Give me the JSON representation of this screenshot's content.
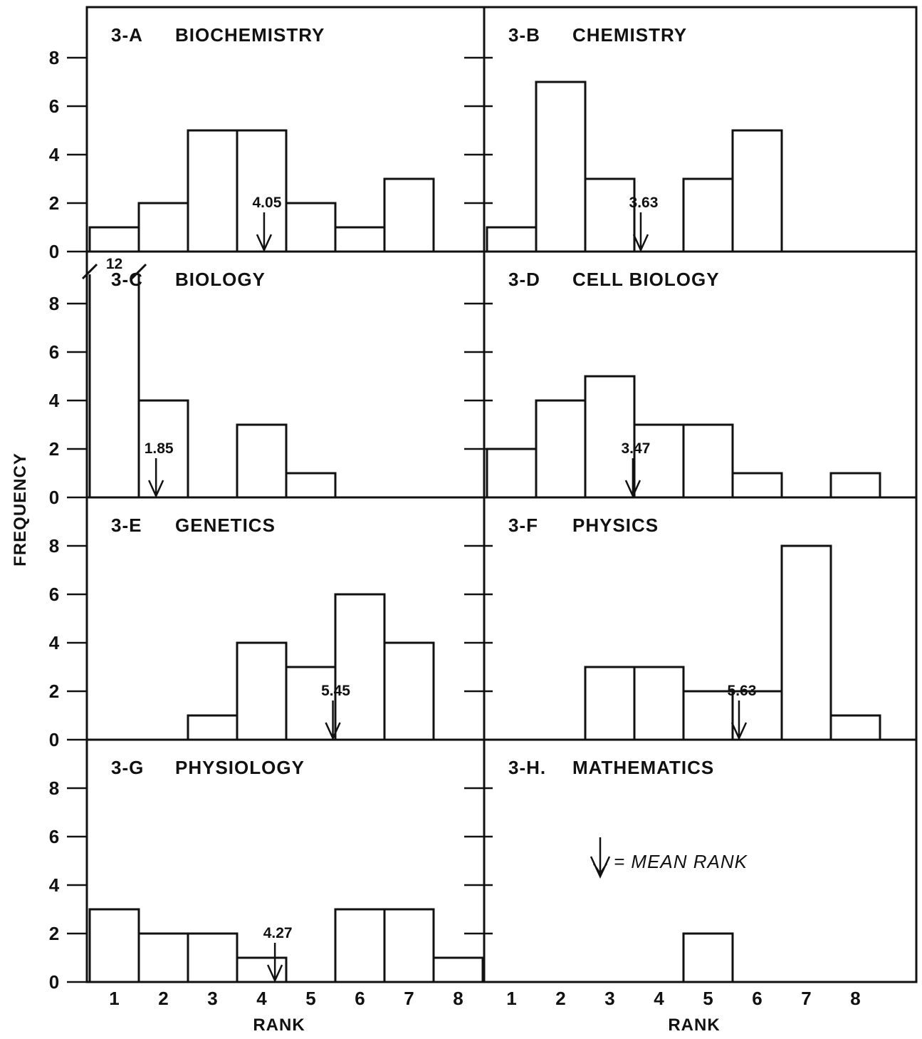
{
  "figure": {
    "ylabel": "FREQUENCY",
    "xlabel_left": "RANK",
    "xlabel_right": "RANK",
    "legend_text": "= MEAN RANK",
    "break_label": "12"
  },
  "chart_data": [
    {
      "type": "bar",
      "panel": "3-A",
      "title": "BIOCHEMISTRY",
      "categories": [
        "1",
        "2",
        "3",
        "4",
        "5",
        "6",
        "7",
        "8"
      ],
      "values": [
        1,
        2,
        5,
        5,
        2,
        1,
        3,
        0
      ],
      "mean_rank": 4.05,
      "mean_label": "4.05",
      "xlabel": "",
      "ylabel": "FREQUENCY",
      "ylim": [
        0,
        9
      ],
      "yticks": [
        0,
        2,
        4,
        6,
        8
      ]
    },
    {
      "type": "bar",
      "panel": "3-B",
      "title": "CHEMISTRY",
      "categories": [
        "1",
        "2",
        "3",
        "4",
        "5",
        "6",
        "7",
        "8"
      ],
      "values": [
        1,
        7,
        3,
        0,
        3,
        5,
        0,
        0
      ],
      "mean_rank": 3.63,
      "mean_label": "3.63",
      "xlabel": "",
      "ylabel": "",
      "ylim": [
        0,
        9
      ],
      "yticks": [
        0,
        2,
        4,
        6,
        8
      ]
    },
    {
      "type": "bar",
      "panel": "3-C",
      "title": "BIOLOGY",
      "categories": [
        "1",
        "2",
        "3",
        "4",
        "5",
        "6",
        "7",
        "8"
      ],
      "values": [
        12,
        4,
        0,
        3,
        1,
        0,
        0,
        0
      ],
      "mean_rank": 1.85,
      "mean_label": "1.85",
      "axis_break": true,
      "break_value_label": "12",
      "xlabel": "",
      "ylabel": "FREQUENCY",
      "ylim": [
        0,
        9
      ],
      "yticks": [
        0,
        2,
        4,
        6,
        8
      ]
    },
    {
      "type": "bar",
      "panel": "3-D",
      "title": "CELL BIOLOGY",
      "categories": [
        "1",
        "2",
        "3",
        "4",
        "5",
        "6",
        "7",
        "8"
      ],
      "values": [
        2,
        4,
        5,
        3,
        3,
        1,
        0,
        1
      ],
      "mean_rank": 3.47,
      "mean_label": "3.47",
      "xlabel": "",
      "ylabel": "",
      "ylim": [
        0,
        9
      ],
      "yticks": [
        0,
        2,
        4,
        6,
        8
      ]
    },
    {
      "type": "bar",
      "panel": "3-E",
      "title": "GENETICS",
      "categories": [
        "1",
        "2",
        "3",
        "4",
        "5",
        "6",
        "7",
        "8"
      ],
      "values": [
        0,
        0,
        1,
        4,
        3,
        6,
        4,
        0
      ],
      "mean_rank": 5.45,
      "mean_label": "5.45",
      "xlabel": "",
      "ylabel": "FREQUENCY",
      "ylim": [
        0,
        9
      ],
      "yticks": [
        0,
        2,
        4,
        6,
        8
      ]
    },
    {
      "type": "bar",
      "panel": "3-F",
      "title": "PHYSICS",
      "categories": [
        "1",
        "2",
        "3",
        "4",
        "5",
        "6",
        "7",
        "8"
      ],
      "values": [
        0,
        0,
        3,
        3,
        2,
        2,
        8,
        1
      ],
      "mean_rank": 5.63,
      "mean_label": "5.63",
      "xlabel": "",
      "ylabel": "",
      "ylim": [
        0,
        9
      ],
      "yticks": [
        0,
        2,
        4,
        6,
        8
      ]
    },
    {
      "type": "bar",
      "panel": "3-G",
      "title": "PHYSIOLOGY",
      "categories": [
        "1",
        "2",
        "3",
        "4",
        "5",
        "6",
        "7",
        "8"
      ],
      "values": [
        3,
        2,
        2,
        1,
        0,
        3,
        3,
        1
      ],
      "mean_rank": 4.27,
      "mean_label": "4.27",
      "xlabel": "RANK",
      "ylabel": "FREQUENCY",
      "ylim": [
        0,
        9
      ],
      "yticks": [
        0,
        2,
        4,
        6,
        8
      ]
    },
    {
      "type": "bar",
      "panel": "3-H.",
      "title": "MATHEMATICS",
      "categories": [
        "1",
        "2",
        "3",
        "4",
        "5",
        "6",
        "7",
        "8"
      ],
      "values": [
        0,
        0,
        0,
        0,
        2,
        0,
        0,
        0
      ],
      "mean_rank": null,
      "mean_label": "",
      "xlabel": "RANK",
      "ylabel": "",
      "ylim": [
        0,
        9
      ],
      "yticks": [
        0,
        2,
        4,
        6,
        8
      ]
    }
  ]
}
